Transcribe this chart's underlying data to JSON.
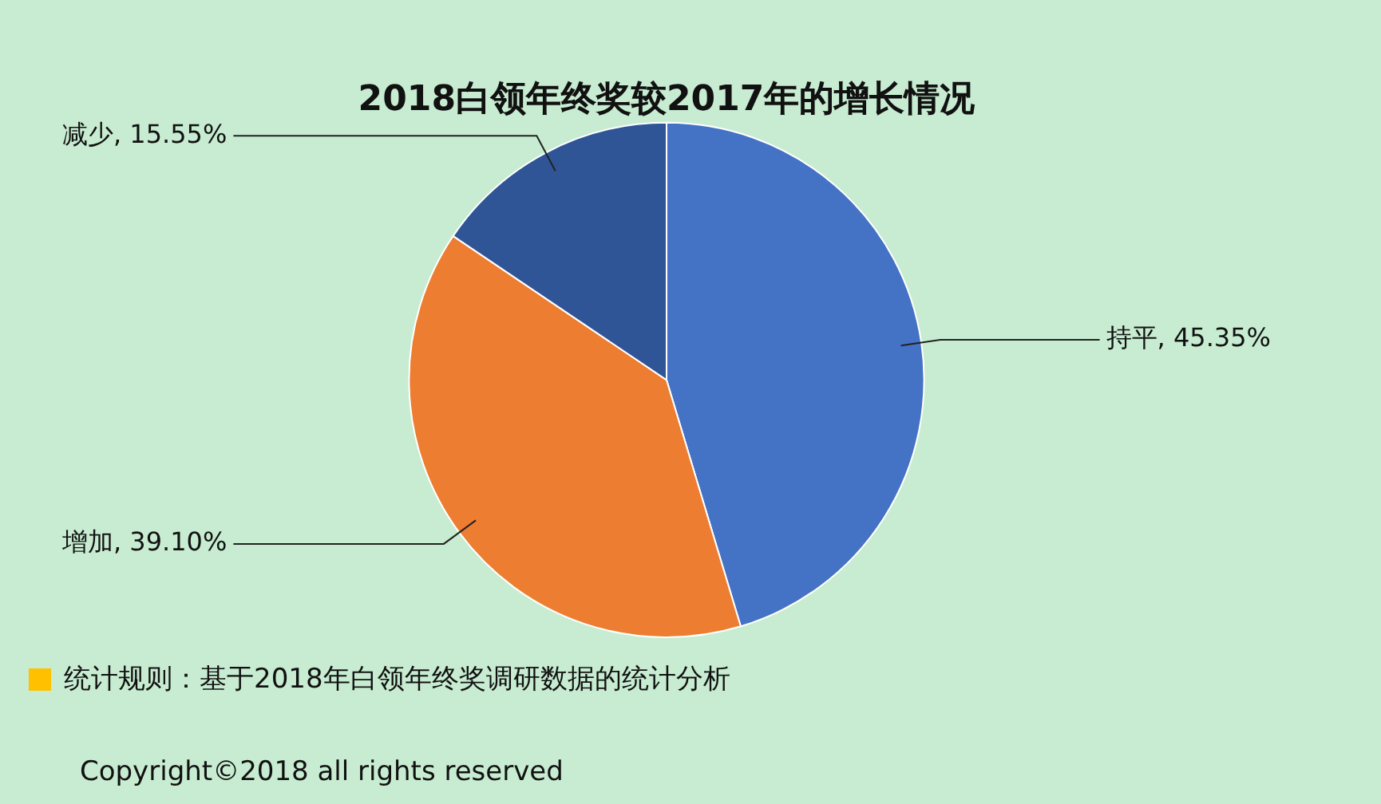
{
  "chart_data": {
    "type": "pie",
    "title": "2018白领年终奖较2017年的增长情况",
    "categories": [
      "持平",
      "增加",
      "减少"
    ],
    "values": [
      45.35,
      39.1,
      15.55
    ],
    "value_labels": [
      "45.35%",
      "39.10%",
      "15.55%"
    ],
    "colors": [
      "#4472c4",
      "#ed7d31",
      "#2f5597"
    ],
    "legend": false,
    "annotations": [
      "统计规则：基于2018年白领年终奖调研数据的统计分析",
      "Copyright©2018 all rights reserved"
    ]
  }
}
